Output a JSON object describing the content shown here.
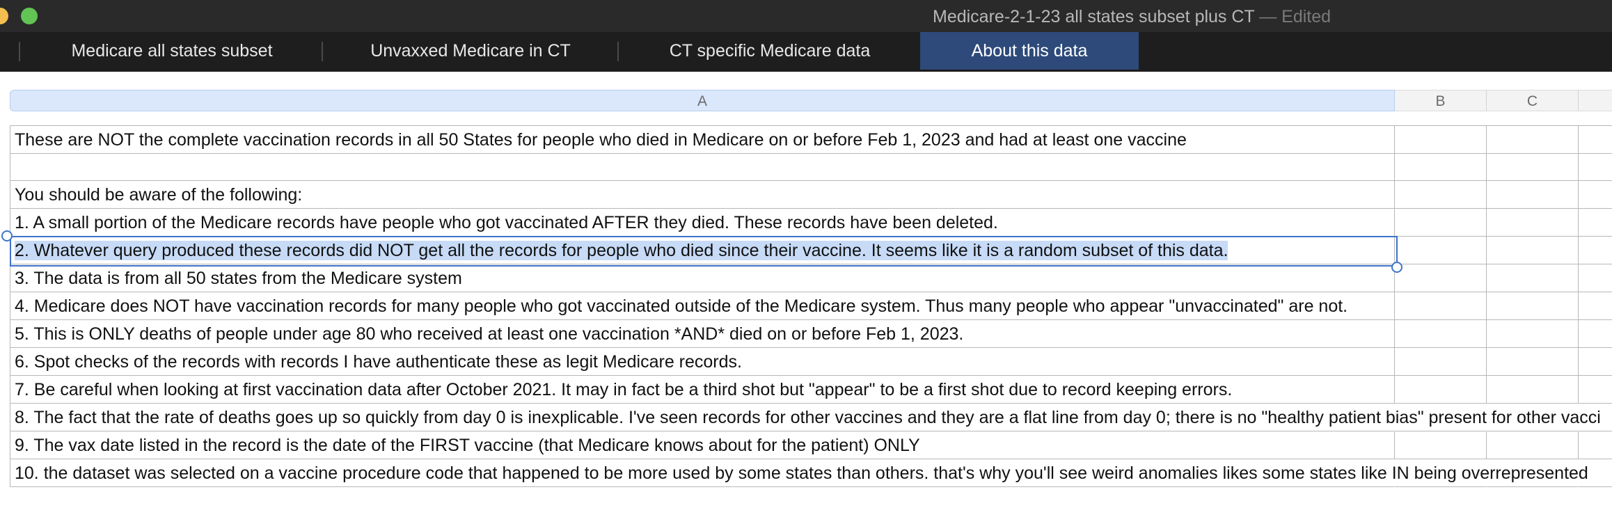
{
  "window": {
    "title": "Medicare-2-1-23 all states subset plus CT",
    "edited_suffix": "— Edited"
  },
  "tabs": [
    {
      "label": "Medicare all states subset",
      "active": false
    },
    {
      "label": "Unvaxxed Medicare in CT",
      "active": false
    },
    {
      "label": "CT specific Medicare data",
      "active": false
    },
    {
      "label": "About this data",
      "active": true
    }
  ],
  "columns": [
    "A",
    "B",
    "C"
  ],
  "selected_row": 5,
  "rows": [
    "These are NOT the complete vaccination records in all 50 States for people who died in Medicare on or before Feb 1, 2023 and had at least one vaccine",
    "",
    "You should be aware of the following:",
    "1. A small portion of the Medicare records have people who got vaccinated AFTER they died. These records have been deleted.",
    "2. Whatever query produced these records did NOT get all the records for people who died since their vaccine. It seems like it is a random subset of this data.",
    "3. The data is from all 50 states from the Medicare system",
    "4. Medicare does NOT have vaccination records for many people who got vaccinated outside of the Medicare system. Thus many people who appear \"unvaccinated\" are not.",
    "5. This is ONLY deaths of people under age 80 who received at least one vaccination *AND* died on or before Feb 1, 2023.",
    "6. Spot checks of the records with records I have authenticate these as legit Medicare records.",
    "7. Be careful when looking at first vaccination data after October 2021. It may in fact be a third shot but \"appear\" to be a first shot due to record keeping errors.",
    "8. The fact that the rate of deaths goes up so quickly from day 0 is inexplicable. I've seen records for other vaccines and they are a flat line from day 0; there is no \"healthy patient bias\" present for other vacci",
    "9. The vax date listed in the record is the date of the FIRST vaccine (that Medicare knows about for the patient) ONLY",
    "10. the dataset was selected on a vaccine procedure code that happened to be more used by some states than others. that's why you'll see weird anomalies likes some states like IN being overrepresented"
  ],
  "colors": {
    "active_tab": "#2d4a7a",
    "selection": "#c7dbf7",
    "selection_border": "#3d74c9"
  }
}
